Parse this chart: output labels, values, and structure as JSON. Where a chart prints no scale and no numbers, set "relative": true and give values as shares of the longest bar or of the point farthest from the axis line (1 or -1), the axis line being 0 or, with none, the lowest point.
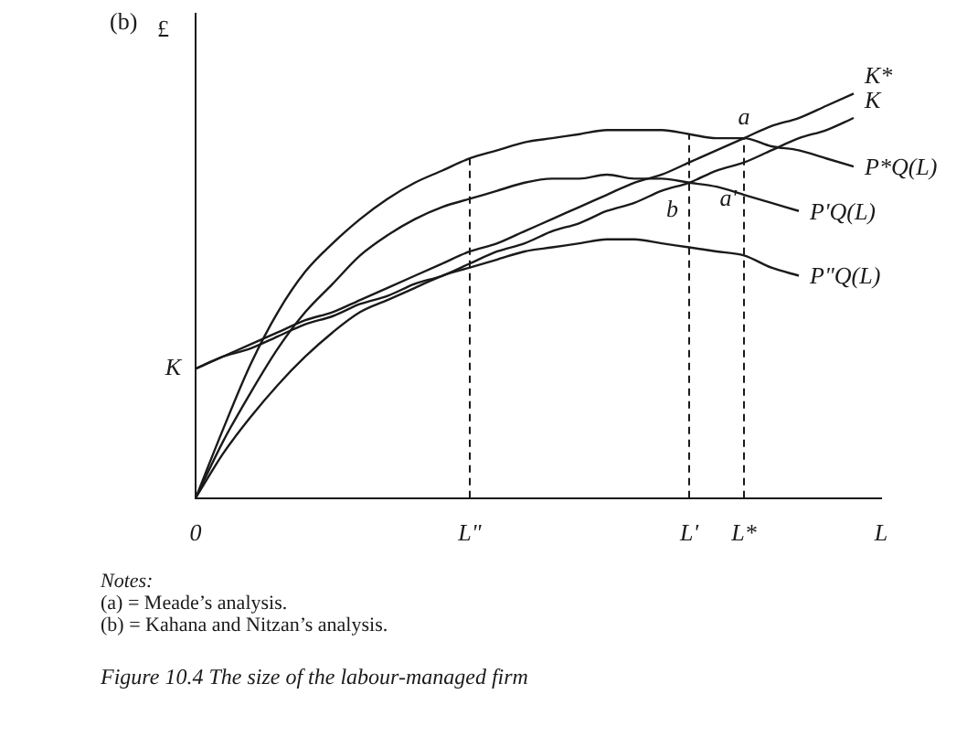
{
  "chart_data": {
    "type": "line",
    "title": "(b)",
    "ylabel": "£",
    "relative": true,
    "legend": false,
    "grid": false,
    "line_style": "solid",
    "marker": "none",
    "color": "#1a1a1a",
    "categories": [
      "0",
      null,
      null,
      null,
      null,
      null,
      null,
      null,
      null,
      null,
      "L\"",
      null,
      null,
      null,
      null,
      null,
      null,
      null,
      "L'",
      null,
      "L*",
      null,
      null,
      null,
      null,
      "L"
    ],
    "series": [
      {
        "name": "K*",
        "values": [
          0.32,
          0.35,
          0.38,
          0.41,
          0.44,
          0.46,
          0.49,
          0.52,
          0.55,
          0.58,
          0.61,
          0.63,
          0.66,
          0.69,
          0.72,
          0.75,
          0.78,
          0.8,
          0.83,
          0.86,
          0.89,
          0.92,
          0.94,
          0.97,
          1.0,
          null
        ]
      },
      {
        "name": "K",
        "values": [
          0.32,
          0.35,
          0.37,
          0.4,
          0.43,
          0.45,
          0.48,
          0.5,
          0.53,
          0.55,
          0.58,
          0.61,
          0.63,
          0.66,
          0.68,
          0.71,
          0.73,
          0.76,
          0.78,
          0.81,
          0.83,
          0.86,
          0.89,
          0.91,
          0.94,
          null
        ]
      },
      {
        "name": "P*Q(L)",
        "values": [
          0,
          0.17,
          0.33,
          0.46,
          0.56,
          0.63,
          0.69,
          0.74,
          0.78,
          0.81,
          0.84,
          0.86,
          0.88,
          0.89,
          0.9,
          0.91,
          0.91,
          0.91,
          0.9,
          0.89,
          0.89,
          0.87,
          0.86,
          0.84,
          0.82,
          null
        ]
      },
      {
        "name": "P'Q(L)",
        "values": [
          0,
          0.14,
          0.26,
          0.37,
          0.46,
          0.53,
          0.6,
          0.65,
          0.69,
          0.72,
          0.74,
          0.76,
          0.78,
          0.79,
          0.79,
          0.8,
          0.79,
          0.79,
          0.78,
          0.77,
          0.75,
          0.73,
          0.71,
          null,
          null,
          null
        ]
      },
      {
        "name": "P\"Q(L)",
        "values": [
          0,
          0.11,
          0.2,
          0.28,
          0.35,
          0.41,
          0.46,
          0.49,
          0.52,
          0.55,
          0.57,
          0.59,
          0.61,
          0.62,
          0.63,
          0.64,
          0.64,
          0.63,
          0.62,
          0.61,
          0.6,
          0.57,
          0.55,
          null,
          null,
          null
        ]
      }
    ],
    "ref_lines": [
      {
        "axis": "x",
        "value": "L\"",
        "line_style": "dashed"
      },
      {
        "axis": "x",
        "value": "L'",
        "line_style": "dashed"
      },
      {
        "axis": "x",
        "value": "L*",
        "line_style": "dashed"
      }
    ],
    "annotations": [
      {
        "text": "K",
        "x": "0",
        "y": 0.32
      },
      {
        "text": "a",
        "x": "L*",
        "y": 0.89
      },
      {
        "text": "b",
        "x": "L'",
        "y": 0.78
      },
      {
        "text": "a'",
        "x": "L*",
        "y": 0.83
      },
      "Notes:",
      "(a) = Meade’s analysis.",
      "(b) = Kahana and Nitzan’s analysis.",
      "Figure 10.4    The size of the labour-managed firm"
    ]
  }
}
